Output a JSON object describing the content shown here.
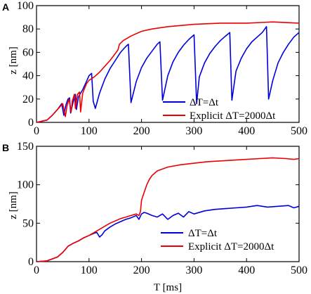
{
  "chart_data": [
    {
      "panel": "A",
      "type": "line",
      "xlabel": "",
      "ylabel": "z [nm]",
      "xlim": [
        0,
        500
      ],
      "ylim": [
        0,
        100
      ],
      "xticks": [
        "0",
        "100",
        "200",
        "300",
        "400",
        "500"
      ],
      "yticks": [
        "0",
        "20",
        "40",
        "60",
        "80",
        "100"
      ],
      "legend_position": "bottom-right",
      "series": [
        {
          "name": "ΔT=Δt",
          "color": "#0000dd",
          "x": [
            0,
            20,
            30,
            40,
            48,
            52,
            56,
            60,
            63,
            65,
            70,
            74,
            76,
            80,
            88,
            95,
            100,
            105,
            108,
            112,
            120,
            130,
            140,
            150,
            160,
            170,
            175,
            180,
            190,
            200,
            210,
            220,
            230,
            235,
            240,
            250,
            260,
            270,
            280,
            290,
            300,
            305,
            310,
            320,
            330,
            340,
            350,
            360,
            368,
            372,
            380,
            390,
            400,
            410,
            420,
            430,
            438,
            442,
            450,
            460,
            470,
            480,
            490,
            500
          ],
          "y": [
            0,
            2,
            6,
            11,
            16,
            6,
            15,
            20,
            21,
            8,
            18,
            24,
            11,
            22,
            28,
            35,
            40,
            42,
            18,
            12,
            25,
            37,
            46,
            53,
            60,
            65,
            67,
            17,
            35,
            47,
            55,
            61,
            67,
            69,
            19,
            40,
            52,
            60,
            66,
            71,
            75,
            16,
            39,
            51,
            59,
            65,
            70,
            74,
            77,
            19,
            44,
            55,
            63,
            69,
            73,
            77,
            82,
            20,
            36,
            51,
            60,
            67,
            73,
            77
          ]
        },
        {
          "name": "Explicit ΔT=2000Δt",
          "color": "#ee0000",
          "x": [
            0,
            20,
            30,
            40,
            50,
            55,
            58,
            62,
            66,
            68,
            72,
            74,
            78,
            82,
            84,
            88,
            95,
            100,
            110,
            120,
            130,
            140,
            150,
            155,
            158,
            165,
            180,
            200,
            220,
            250,
            300,
            350,
            400,
            450,
            500
          ],
          "y": [
            0,
            2,
            6,
            11,
            16,
            5,
            14,
            20,
            9,
            18,
            24,
            12,
            24,
            26,
            9,
            25,
            33,
            36,
            39,
            43,
            48,
            53,
            59,
            62,
            67,
            70,
            74,
            78,
            80,
            82,
            84,
            85,
            85,
            86,
            85
          ]
        }
      ]
    },
    {
      "panel": "B",
      "type": "line",
      "xlabel": "T [ms]",
      "ylabel": "z [nm]",
      "xlim": [
        0,
        500
      ],
      "ylim": [
        0,
        150
      ],
      "xticks": [
        "0",
        "100",
        "200",
        "300",
        "400",
        "500"
      ],
      "yticks": [
        "0",
        "50",
        "100",
        "150"
      ],
      "legend_position": "bottom-right",
      "series": [
        {
          "name": "ΔT=Δt",
          "color": "#0000dd",
          "x": [
            0,
            20,
            40,
            50,
            60,
            70,
            80,
            90,
            100,
            110,
            115,
            120,
            125,
            130,
            140,
            150,
            160,
            170,
            180,
            190,
            195,
            200,
            205,
            210,
            220,
            230,
            240,
            250,
            260,
            270,
            280,
            290,
            300,
            320,
            340,
            360,
            380,
            400,
            420,
            440,
            460,
            480,
            490,
            500
          ],
          "y": [
            0,
            1,
            6,
            12,
            20,
            24,
            27,
            31,
            34,
            37,
            38,
            32,
            35,
            40,
            45,
            49,
            52,
            55,
            57,
            60,
            55,
            62,
            64,
            63,
            60,
            58,
            62,
            55,
            60,
            63,
            58,
            65,
            62,
            66,
            68,
            69,
            70,
            71,
            73,
            71,
            72,
            73,
            70,
            72
          ]
        },
        {
          "name": "Explicit ΔT=2000Δt",
          "color": "#ee0000",
          "x": [
            0,
            20,
            40,
            50,
            60,
            70,
            80,
            90,
            100,
            110,
            120,
            130,
            140,
            150,
            160,
            170,
            180,
            190,
            195,
            198,
            200,
            205,
            210,
            215,
            220,
            230,
            250,
            275,
            300,
            325,
            350,
            375,
            400,
            425,
            450,
            475,
            490,
            500
          ],
          "y": [
            0,
            1,
            6,
            12,
            20,
            24,
            27,
            31,
            34,
            38,
            42,
            46,
            50,
            53,
            56,
            58,
            60,
            62,
            60,
            65,
            80,
            90,
            100,
            107,
            112,
            118,
            123,
            126,
            128,
            130,
            131,
            132,
            133,
            134,
            135,
            134,
            133,
            134
          ]
        }
      ]
    }
  ]
}
